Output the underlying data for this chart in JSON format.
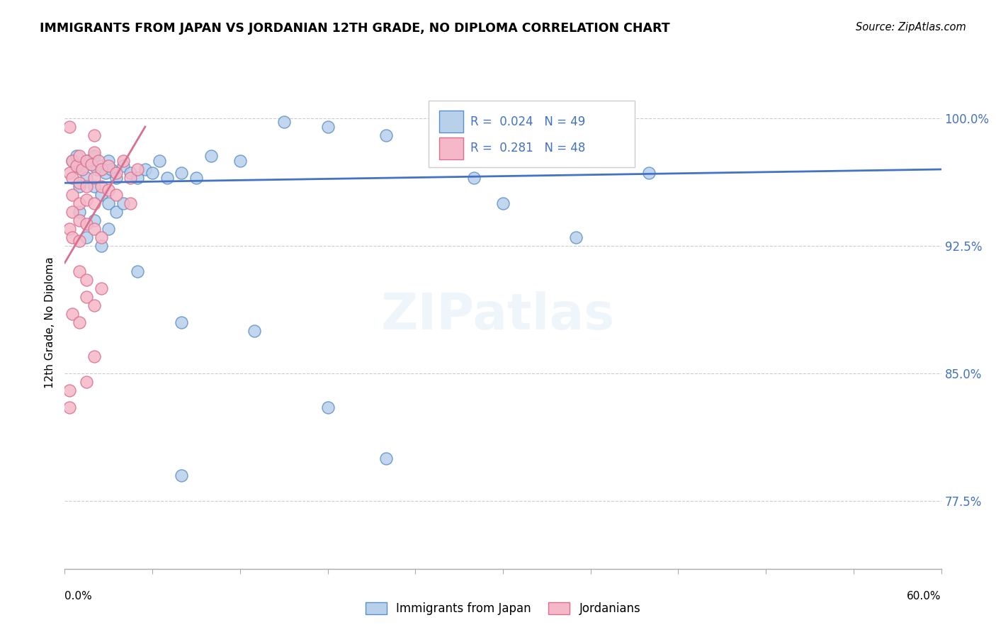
{
  "title": "IMMIGRANTS FROM JAPAN VS JORDANIAN 12TH GRADE, NO DIPLOMA CORRELATION CHART",
  "source": "Source: ZipAtlas.com",
  "ylabel": "12th Grade, No Diploma",
  "ytick_vals": [
    77.5,
    85.0,
    92.5,
    100.0
  ],
  "ytick_labels": [
    "77.5%",
    "85.0%",
    "92.5%",
    "100.0%"
  ],
  "xmin": 0.0,
  "xmax": 60.0,
  "ymin": 73.5,
  "ymax": 102.5,
  "color_blue_fill": "#b8d0ea",
  "color_blue_edge": "#5b8fc9",
  "color_pink_fill": "#f5b8c8",
  "color_pink_edge": "#d97090",
  "color_blue_line": "#4472c4",
  "color_pink_line": "#d97090",
  "color_text_blue": "#4472c4",
  "color_grid": "#cccccc",
  "blue_x": [
    0.5,
    0.8,
    1.0,
    1.2,
    1.5,
    1.8,
    2.0,
    2.2,
    2.5,
    2.8,
    3.0,
    3.2,
    3.5,
    4.0,
    4.5,
    5.0,
    5.5,
    6.0,
    6.5,
    7.0,
    8.0,
    9.0,
    10.0,
    12.0,
    15.0,
    18.0,
    22.0,
    28.0,
    30.0,
    35.0,
    40.0,
    1.0,
    1.5,
    2.0,
    2.5,
    3.0,
    3.5,
    4.0,
    1.0,
    2.0,
    3.0,
    1.5,
    2.5,
    5.0,
    8.0,
    13.0,
    18.0,
    8.0,
    22.0
  ],
  "blue_y": [
    97.5,
    97.8,
    97.2,
    97.0,
    97.5,
    97.3,
    97.8,
    97.0,
    97.2,
    96.8,
    97.5,
    97.0,
    96.5,
    97.2,
    96.8,
    96.5,
    97.0,
    96.8,
    97.5,
    96.5,
    96.8,
    96.5,
    97.8,
    97.5,
    99.8,
    99.5,
    99.0,
    96.5,
    95.0,
    93.0,
    96.8,
    96.0,
    96.5,
    96.0,
    95.5,
    95.0,
    94.5,
    95.0,
    94.5,
    94.0,
    93.5,
    93.0,
    92.5,
    91.0,
    88.0,
    87.5,
    83.0,
    79.0,
    80.0
  ],
  "pink_x": [
    0.3,
    0.5,
    0.8,
    1.0,
    1.2,
    1.5,
    1.8,
    2.0,
    2.3,
    2.5,
    3.0,
    3.5,
    4.0,
    4.5,
    5.0,
    0.5,
    1.0,
    1.5,
    2.0,
    2.5,
    3.0,
    3.5,
    4.5,
    0.5,
    1.0,
    1.5,
    2.0,
    0.5,
    1.0,
    1.5,
    2.0,
    2.5,
    0.3,
    0.5,
    1.0,
    0.3,
    2.0,
    1.0,
    1.5,
    2.5,
    1.5,
    2.0,
    0.5,
    1.0,
    2.0,
    0.3,
    1.5,
    0.3
  ],
  "pink_y": [
    96.8,
    97.5,
    97.2,
    97.8,
    97.0,
    97.5,
    97.3,
    98.0,
    97.5,
    97.0,
    97.2,
    96.8,
    97.5,
    96.5,
    97.0,
    96.5,
    96.2,
    96.0,
    96.5,
    96.0,
    95.8,
    95.5,
    95.0,
    95.5,
    95.0,
    95.2,
    95.0,
    94.5,
    94.0,
    93.8,
    93.5,
    93.0,
    93.5,
    93.0,
    92.8,
    99.5,
    99.0,
    91.0,
    90.5,
    90.0,
    89.5,
    89.0,
    88.5,
    88.0,
    86.0,
    84.0,
    84.5,
    83.0
  ],
  "blue_trend_x": [
    0.0,
    60.0
  ],
  "blue_trend_y": [
    96.2,
    97.0
  ],
  "pink_trend_x": [
    0.0,
    5.5
  ],
  "pink_trend_y": [
    91.5,
    99.5
  ]
}
